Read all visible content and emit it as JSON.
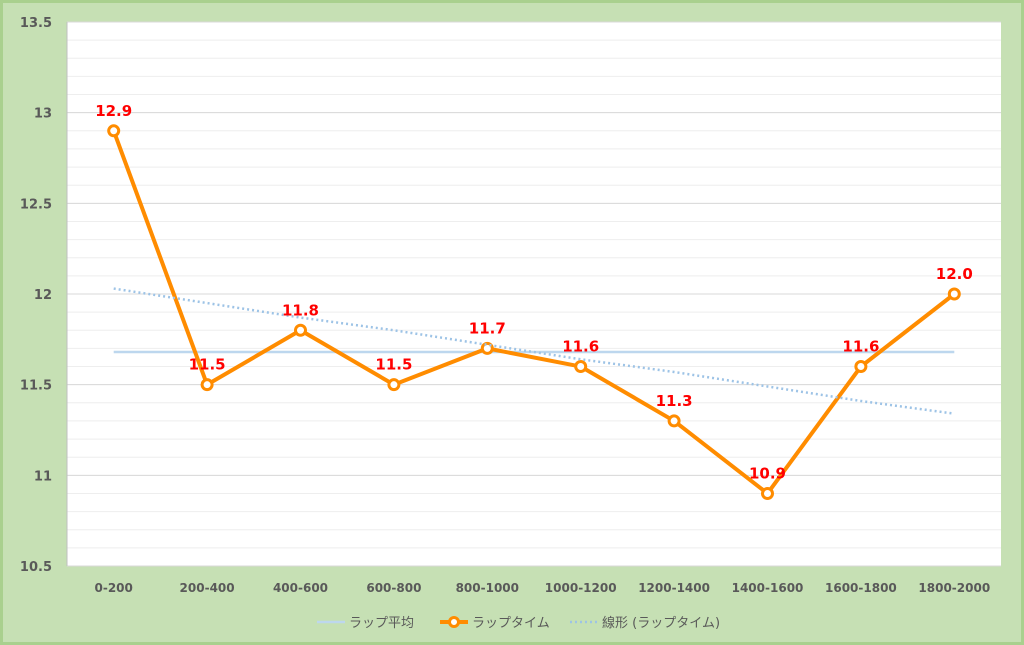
{
  "chart_data": {
    "type": "line",
    "categories": [
      "0-200",
      "200-400",
      "400-600",
      "600-800",
      "800-1000",
      "1000-1200",
      "1200-1400",
      "1400-1600",
      "1600-1800",
      "1800-2000"
    ],
    "series": [
      {
        "name": "ラップ平均",
        "values": [
          11.68,
          11.68,
          11.68,
          11.68,
          11.68,
          11.68,
          11.68,
          11.68,
          11.68,
          11.68
        ],
        "color": "#bdd7ee",
        "style": "solid"
      },
      {
        "name": "ラップタイム",
        "values": [
          12.9,
          11.5,
          11.8,
          11.5,
          11.7,
          11.6,
          11.3,
          10.9,
          11.6,
          12.0
        ],
        "color": "#ff8c00",
        "style": "line-markers"
      },
      {
        "name": "線形 (ラップタイム)",
        "values": [
          12.03,
          11.95,
          11.87,
          11.8,
          11.72,
          11.64,
          11.57,
          11.49,
          11.41,
          11.34
        ],
        "color": "#9dc3e6",
        "style": "dotted"
      }
    ],
    "data_labels": [
      "12.9",
      "11.5",
      "11.8",
      "11.5",
      "11.7",
      "11.6",
      "11.3",
      "10.9",
      "11.6",
      "12.0"
    ],
    "y_ticks": [
      "10.5",
      "11",
      "11.5",
      "12",
      "12.5",
      "13",
      "13.5"
    ],
    "ylim": [
      10.5,
      13.5
    ],
    "grid": true,
    "legend_position": "bottom",
    "title": "",
    "xlabel": "",
    "ylabel": ""
  }
}
